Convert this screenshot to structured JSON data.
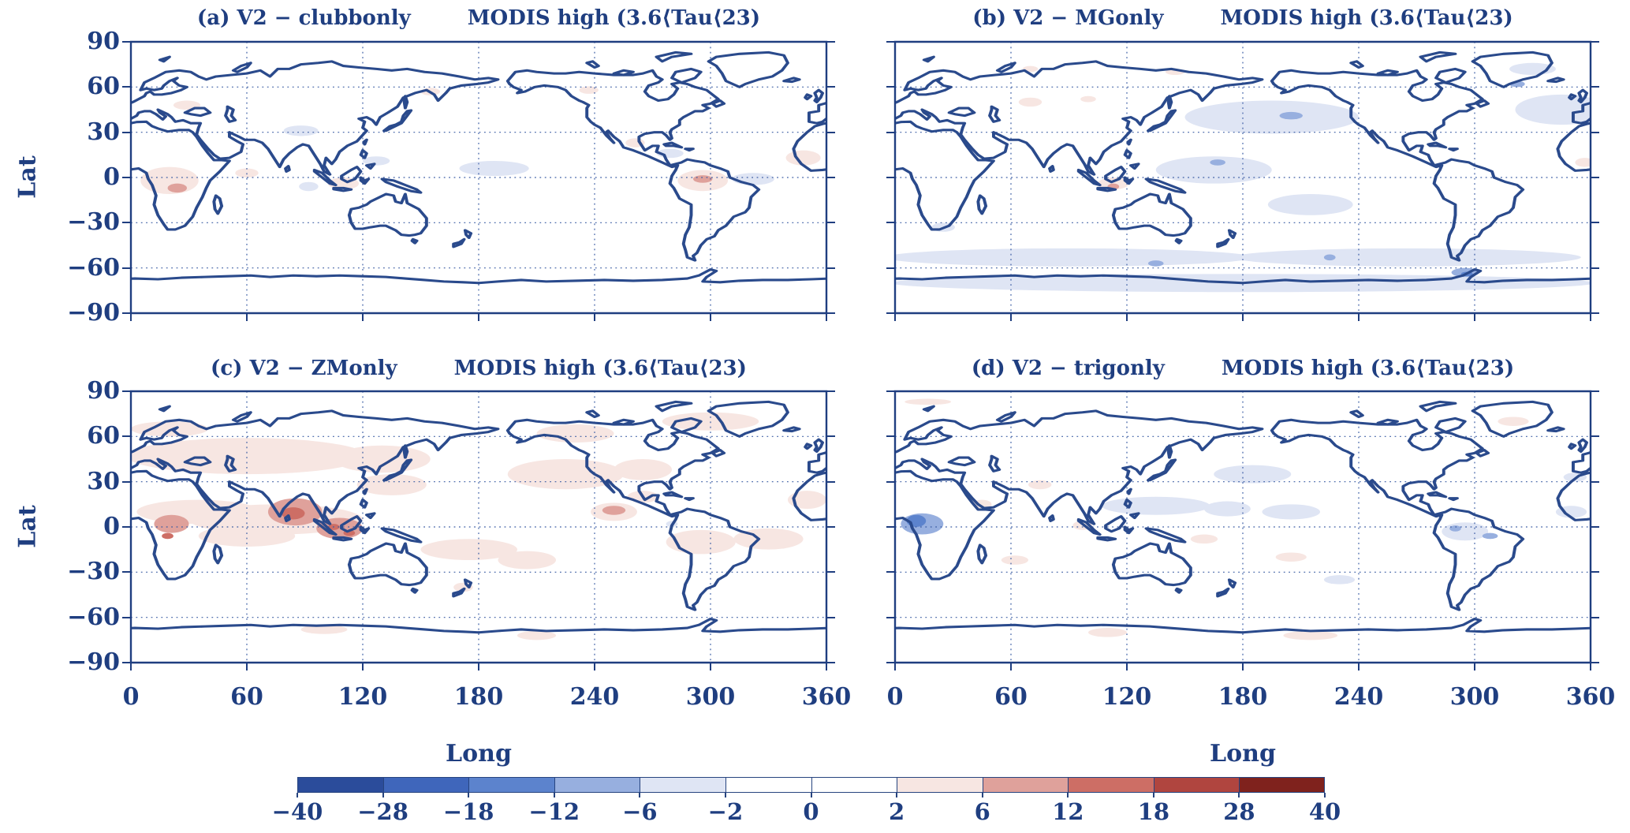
{
  "figure": {
    "background": "#ffffff",
    "text_color": "#1f3e80",
    "coast_color": "#2a4a8c"
  },
  "chart_data": {
    "type": "heatmap",
    "subtype": "global-difference-maps",
    "projection": "equirectangular",
    "description": "Four-panel global maps of model-minus-observation differences in MODIS high cloud fraction (3.6<Tau<23), shaded by difference level; blue = negative, red = positive.",
    "anomaly_format": [
      "lon_center_deg",
      "lat_center_deg",
      "lon_radius_deg",
      "lat_radius_deg",
      "representative_value"
    ],
    "axes": {
      "xlabel": "Long",
      "ylabel": "Lat",
      "xticks": [
        0,
        60,
        120,
        180,
        240,
        300,
        360
      ],
      "yticks": [
        90,
        60,
        30,
        0,
        -30,
        -60,
        -90
      ],
      "xlim": [
        0,
        360
      ],
      "ylim": [
        -90,
        90
      ],
      "grid": "dotted",
      "grid_lon_step": 60,
      "grid_lat_step": 30
    },
    "colorbar": {
      "orientation": "horizontal",
      "levels": [
        -40,
        -28,
        -18,
        -12,
        -6,
        -2,
        0,
        2,
        6,
        12,
        18,
        28,
        40
      ],
      "colors": [
        "#2b4c9b",
        "#3f66bb",
        "#5c83cd",
        "#97afdf",
        "#dfe5f4",
        "#ffffff",
        "#ffffff",
        "#f7e6e2",
        "#dfa19b",
        "#cd6e65",
        "#b0453f",
        "#7f221d"
      ]
    },
    "panels": [
      {
        "id": "a",
        "title_left": "(a) V2 − clubbonly",
        "title_right": "MODIS high (3.6⟨Tau⟨23)",
        "anomalies": [
          [
            20,
            -2,
            15,
            9,
            4
          ],
          [
            24,
            -7,
            5,
            3,
            9
          ],
          [
            296,
            -2,
            13,
            7,
            4
          ],
          [
            296,
            -1,
            5,
            2.5,
            9
          ],
          [
            348,
            13,
            9,
            5,
            4
          ],
          [
            88,
            31,
            9,
            3.5,
            -4
          ],
          [
            188,
            6,
            18,
            5,
            -4
          ],
          [
            127,
            11,
            7,
            3,
            -4
          ],
          [
            322,
            -1,
            11,
            4,
            -4
          ],
          [
            279,
            16,
            7,
            3,
            -4
          ],
          [
            29,
            48,
            7,
            3,
            4
          ],
          [
            261,
            23,
            5,
            3,
            4
          ],
          [
            237,
            58,
            5,
            2.5,
            4
          ],
          [
            155,
            57,
            5,
            2.5,
            4
          ],
          [
            110,
            -4,
            8,
            4,
            4
          ],
          [
            92,
            -6,
            5,
            3,
            -4
          ],
          [
            60,
            3,
            6,
            3,
            4
          ]
        ]
      },
      {
        "id": "b",
        "title_left": "(b) V2 − MGonly",
        "title_right": "MODIS high (3.6⟨Tau⟨23)",
        "anomalies": [
          [
            195,
            40,
            45,
            11,
            -4
          ],
          [
            165,
            5,
            30,
            9,
            -4
          ],
          [
            215,
            -18,
            22,
            7,
            -4
          ],
          [
            90,
            -53,
            95,
            6,
            -4
          ],
          [
            265,
            -53,
            90,
            6,
            -4
          ],
          [
            180,
            -70,
            182,
            6,
            -4
          ],
          [
            345,
            45,
            24,
            10,
            -4
          ],
          [
            330,
            72,
            12,
            4,
            -4
          ],
          [
            205,
            41,
            6,
            2.5,
            -9
          ],
          [
            167,
            10,
            4,
            2,
            -9
          ],
          [
            295,
            -63,
            7,
            3,
            -9
          ],
          [
            296,
            -64,
            3,
            1.5,
            -15
          ],
          [
            135,
            -57,
            4,
            2,
            -9
          ],
          [
            225,
            -53,
            3,
            2,
            -9
          ],
          [
            322,
            62,
            4,
            2,
            -9
          ],
          [
            113,
            -4,
            8,
            4,
            4
          ],
          [
            113,
            -6,
            3,
            2,
            9
          ],
          [
            70,
            50,
            6,
            3,
            4
          ],
          [
            100,
            52,
            4,
            2,
            4
          ],
          [
            357,
            10,
            5,
            3,
            4
          ],
          [
            70,
            72,
            4,
            2,
            4
          ],
          [
            145,
            70,
            5,
            2,
            4
          ],
          [
            25,
            -33,
            6,
            3,
            -4
          ]
        ]
      },
      {
        "id": "c",
        "title_left": "(c) V2 − ZMonly",
        "title_right": "MODIS high (3.6⟨Tau⟨23)",
        "anomalies": [
          [
            75,
            5,
            45,
            10,
            4
          ],
          [
            60,
            47,
            62,
            12,
            4
          ],
          [
            130,
            45,
            25,
            9,
            4
          ],
          [
            20,
            65,
            20,
            5,
            4
          ],
          [
            225,
            35,
            30,
            10,
            4
          ],
          [
            265,
            38,
            15,
            7,
            4
          ],
          [
            300,
            70,
            25,
            6,
            4
          ],
          [
            230,
            62,
            20,
            6,
            4
          ],
          [
            35,
            10,
            32,
            8,
            4
          ],
          [
            21,
            2,
            9,
            6,
            9
          ],
          [
            19,
            -6,
            3,
            2,
            15
          ],
          [
            85,
            10,
            14,
            9,
            9
          ],
          [
            84,
            9,
            6,
            4,
            15
          ],
          [
            108,
            -1,
            12,
            7,
            9
          ],
          [
            105,
            0,
            3,
            2,
            15
          ],
          [
            113,
            -4,
            3,
            2,
            15
          ],
          [
            60,
            -6,
            25,
            7,
            4
          ],
          [
            135,
            28,
            18,
            7,
            4
          ],
          [
            175,
            -15,
            25,
            7,
            4
          ],
          [
            205,
            -22,
            15,
            6,
            4
          ],
          [
            250,
            10,
            12,
            6,
            4
          ],
          [
            250,
            11,
            6,
            3,
            9
          ],
          [
            295,
            -10,
            18,
            8,
            4
          ],
          [
            330,
            -8,
            18,
            7,
            4
          ],
          [
            350,
            18,
            10,
            6,
            4
          ],
          [
            280,
            2,
            3,
            2,
            -4
          ],
          [
            172,
            -40,
            5,
            3,
            4
          ],
          [
            100,
            -68,
            12,
            3,
            4
          ],
          [
            210,
            -72,
            10,
            3,
            4
          ],
          [
            265,
            20,
            8,
            4,
            4
          ]
        ]
      },
      {
        "id": "d",
        "title_left": "(d) V2 − trigonly",
        "title_right": "MODIS high (3.6⟨Tau⟨23)",
        "anomalies": [
          [
            14,
            2,
            11,
            7,
            -9
          ],
          [
            11,
            4,
            5,
            4,
            -15
          ],
          [
            135,
            14,
            28,
            6,
            -4
          ],
          [
            172,
            12,
            12,
            5,
            -4
          ],
          [
            205,
            10,
            15,
            5,
            -4
          ],
          [
            185,
            35,
            20,
            6,
            -4
          ],
          [
            295,
            -3,
            12,
            6,
            -4
          ],
          [
            290,
            -1,
            3,
            2,
            -9
          ],
          [
            308,
            -6,
            4,
            2,
            -9
          ],
          [
            350,
            10,
            8,
            4,
            -4
          ],
          [
            352,
            33,
            6,
            3,
            -4
          ],
          [
            62,
            -22,
            7,
            3,
            4
          ],
          [
            97,
            1,
            5,
            3,
            4
          ],
          [
            160,
            -8,
            7,
            3,
            4
          ],
          [
            215,
            -72,
            14,
            3,
            4
          ],
          [
            110,
            -70,
            10,
            3,
            4
          ],
          [
            45,
            15,
            5,
            3,
            4
          ],
          [
            75,
            28,
            6,
            3,
            4
          ],
          [
            17,
            83,
            12,
            2,
            4
          ],
          [
            320,
            70,
            8,
            3,
            4
          ],
          [
            205,
            -20,
            8,
            3,
            4
          ],
          [
            230,
            -35,
            8,
            3,
            -4
          ]
        ]
      }
    ]
  }
}
